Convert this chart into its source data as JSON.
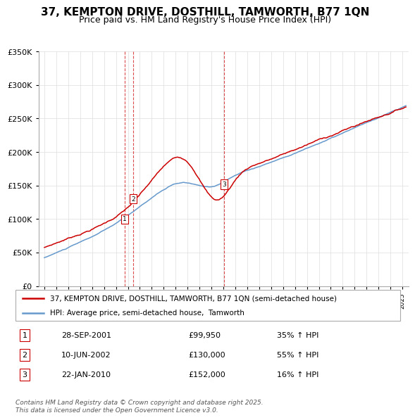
{
  "title": "37, KEMPTON DRIVE, DOSTHILL, TAMWORTH, B77 1QN",
  "subtitle": "Price paid vs. HM Land Registry's House Price Index (HPI)",
  "ylim": [
    0,
    350000
  ],
  "yticks": [
    0,
    50000,
    100000,
    150000,
    200000,
    250000,
    300000,
    350000
  ],
  "ytick_labels": [
    "£0",
    "£50K",
    "£100K",
    "£150K",
    "£200K",
    "£250K",
    "£300K",
    "£350K"
  ],
  "xlim_start": 1994.5,
  "xlim_end": 2025.5,
  "sale_dates": [
    2001.747,
    2002.44,
    2010.055
  ],
  "sale_prices": [
    99950,
    130000,
    152000
  ],
  "sale_labels": [
    "1",
    "2",
    "3"
  ],
  "sale_date_strings": [
    "28-SEP-2001",
    "10-JUN-2002",
    "22-JAN-2010"
  ],
  "sale_price_strings": [
    "£99,950",
    "£130,000",
    "£152,000"
  ],
  "sale_hpi_strings": [
    "35% ↑ HPI",
    "55% ↑ HPI",
    "16% ↑ HPI"
  ],
  "red_color": "#cc0000",
  "blue_color": "#6699cc",
  "legend_label_red": "37, KEMPTON DRIVE, DOSTHILL, TAMWORTH, B77 1QN (semi-detached house)",
  "legend_label_blue": "HPI: Average price, semi-detached house,  Tamworth",
  "footer_text": "Contains HM Land Registry data © Crown copyright and database right 2025.\nThis data is licensed under the Open Government Licence v3.0.",
  "grid_color": "#dddddd",
  "title_fontsize": 11,
  "subtitle_fontsize": 9,
  "tick_fontsize": 8
}
